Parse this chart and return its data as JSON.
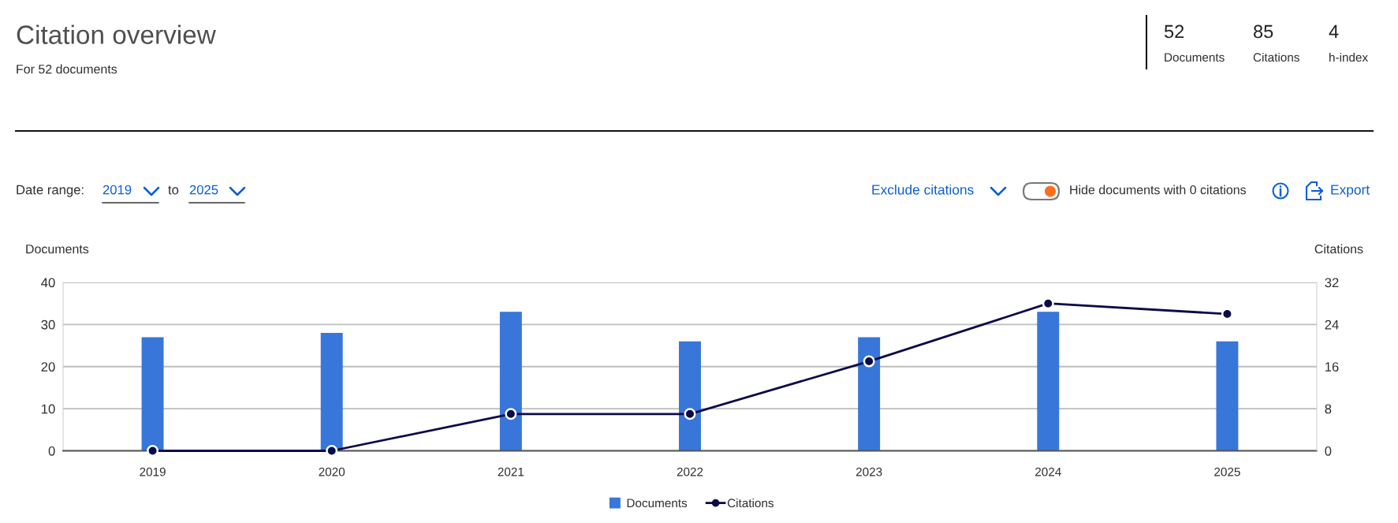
{
  "chart_data": {
    "type": "bar",
    "title": "Citation overview",
    "subtitle": "For 52 documents",
    "categories": [
      "2019",
      "2020",
      "2021",
      "2022",
      "2023",
      "2024",
      "2025"
    ],
    "series": [
      {
        "name": "Documents",
        "color": "#3876d9",
        "values": [
          27,
          28,
          33,
          26,
          27,
          33,
          26
        ]
      },
      {
        "name": "Citations",
        "type": "line",
        "axis": "y2",
        "color": "#0b0a4a",
        "values": [
          0,
          0,
          7,
          7,
          17,
          28,
          26
        ]
      }
    ],
    "ylabel": "Documents",
    "y2label": "Citations",
    "ylim": [
      0,
      40
    ],
    "yticks": [
      0,
      10,
      20,
      30,
      40
    ],
    "y2lim": [
      0,
      32
    ],
    "y2ticks": [
      0,
      8,
      16,
      24,
      32
    ],
    "grid": "y",
    "legend": "bottom",
    "marker": "circle",
    "line_style": "solid",
    "annotations": [
      "52",
      "Documents",
      "85",
      "Citations",
      "4",
      "h-index",
      "Date range:",
      "2019",
      "to",
      "2025",
      "Exclude citations",
      "Hide documents with 0 citations",
      "Export"
    ]
  }
}
